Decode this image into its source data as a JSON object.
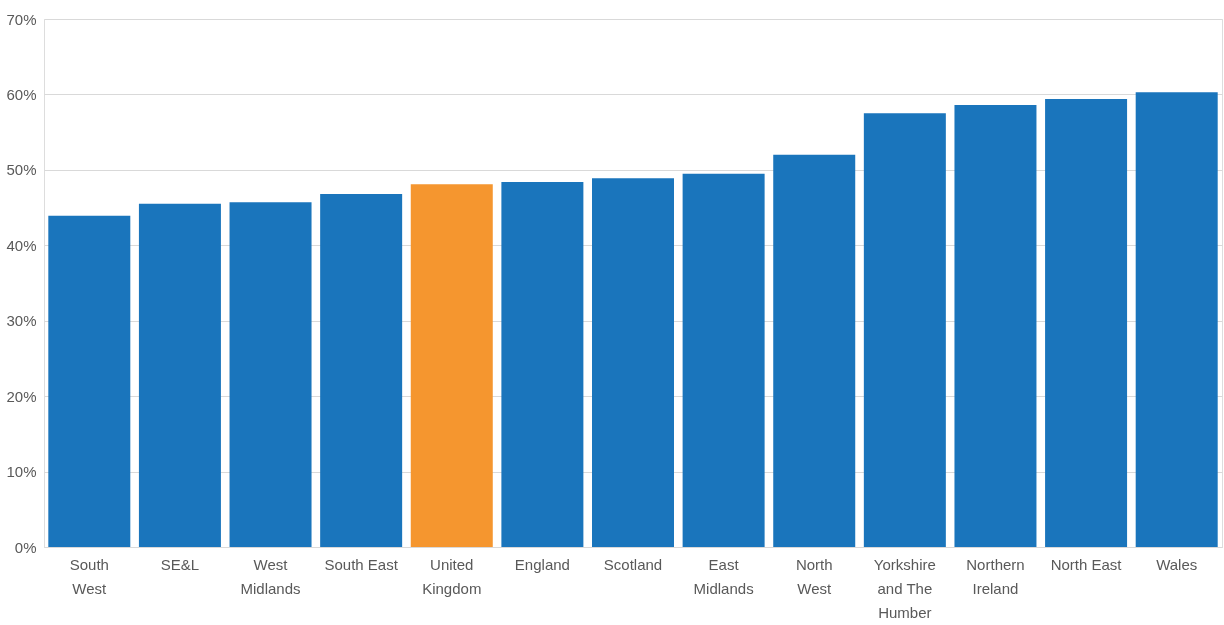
{
  "chart_data": {
    "type": "bar",
    "categories": [
      "South\nWest",
      "SE&L",
      "West\nMidlands",
      "South East",
      "United\nKingdom",
      "England",
      "Scotland",
      "East\nMidlands",
      "North\nWest",
      "Yorkshire\nand The\nHumber",
      "Northern\nIreland",
      "North East",
      "Wales"
    ],
    "values": [
      43.9,
      45.5,
      45.7,
      46.8,
      48.1,
      48.4,
      48.9,
      49.5,
      52.0,
      57.5,
      58.6,
      59.4,
      60.3
    ],
    "colors": [
      "#1a75bc",
      "#1a75bc",
      "#1a75bc",
      "#1a75bc",
      "#f5962f",
      "#1a75bc",
      "#1a75bc",
      "#1a75bc",
      "#1a75bc",
      "#1a75bc",
      "#1a75bc",
      "#1a75bc",
      "#1a75bc"
    ],
    "ylim": [
      0,
      70
    ],
    "yticks": [
      {
        "value": 0,
        "label": "0%"
      },
      {
        "value": 10,
        "label": "10%"
      },
      {
        "value": 20,
        "label": "20%"
      },
      {
        "value": 30,
        "label": "30%"
      },
      {
        "value": 40,
        "label": "40%"
      },
      {
        "value": 50,
        "label": "50%"
      },
      {
        "value": 60,
        "label": "60%"
      },
      {
        "value": 70,
        "label": "70%"
      }
    ],
    "grid": "y"
  }
}
